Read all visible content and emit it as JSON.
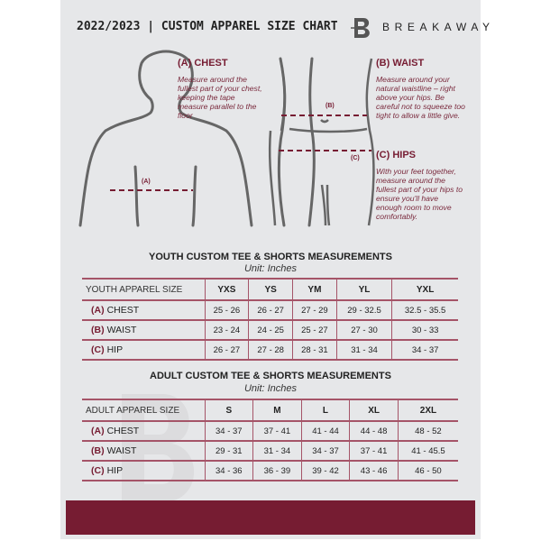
{
  "header": {
    "title": "2022/2023  |  CUSTOM APPAREL SIZE CHART",
    "brand": "BREAKAWAY",
    "logo_letter": "B"
  },
  "guide": {
    "chest": {
      "heading": "(A) CHEST",
      "text": "Measure around the fullest part of your chest, keeping the tape measure parallel to the floor",
      "marker": "(A)"
    },
    "waist": {
      "heading": "(B) WAIST",
      "text": "Measure around your natural waistline – right above your hips. Be careful not to squeeze too tight to allow a little give.",
      "marker": "(B)"
    },
    "hips": {
      "heading": "(C) HIPS",
      "text": "With your feet together, measure around the fullest part of your hips to ensure you'll have enough room to move comfortably.",
      "marker": "(C)"
    }
  },
  "youth": {
    "title": "YOUTH CUSTOM TEE & SHORTS MEASUREMENTS",
    "unit": "Unit: Inches",
    "header": [
      "YOUTH APPAREL SIZE",
      "YXS",
      "YS",
      "YM",
      "YL",
      "YXL"
    ],
    "rows": [
      {
        "letter": "(A)",
        "label": "CHEST",
        "values": [
          "25 - 26",
          "26 - 27",
          "27 - 29",
          "29 - 32.5",
          "32.5 - 35.5"
        ]
      },
      {
        "letter": "(B)",
        "label": "WAIST",
        "values": [
          "23 - 24",
          "24 - 25",
          "25 - 27",
          "27 - 30",
          "30 - 33"
        ]
      },
      {
        "letter": "(C)",
        "label": "HIP",
        "values": [
          "26 - 27",
          "27 - 28",
          "28 - 31",
          "31 - 34",
          "34 - 37"
        ]
      }
    ]
  },
  "adult": {
    "title": "ADULT CUSTOM TEE & SHORTS MEASUREMENTS",
    "unit": "Unit: Inches",
    "header": [
      "ADULT APPAREL SIZE",
      "S",
      "M",
      "L",
      "XL",
      "2XL"
    ],
    "rows": [
      {
        "letter": "(A)",
        "label": "CHEST",
        "values": [
          "34 - 37",
          "37 - 41",
          "41 - 44",
          "44 - 48",
          "48 - 52"
        ]
      },
      {
        "letter": "(B)",
        "label": "WAIST",
        "values": [
          "29 - 31",
          "31 - 34",
          "34 - 37",
          "37 - 41",
          "41 - 45.5"
        ]
      },
      {
        "letter": "(C)",
        "label": "HIP",
        "values": [
          "34 - 36",
          "36 - 39",
          "39 - 42",
          "43 - 46",
          "46 - 50"
        ]
      }
    ]
  },
  "colors": {
    "accent": "#761c32",
    "background": "#e6e7e9"
  }
}
